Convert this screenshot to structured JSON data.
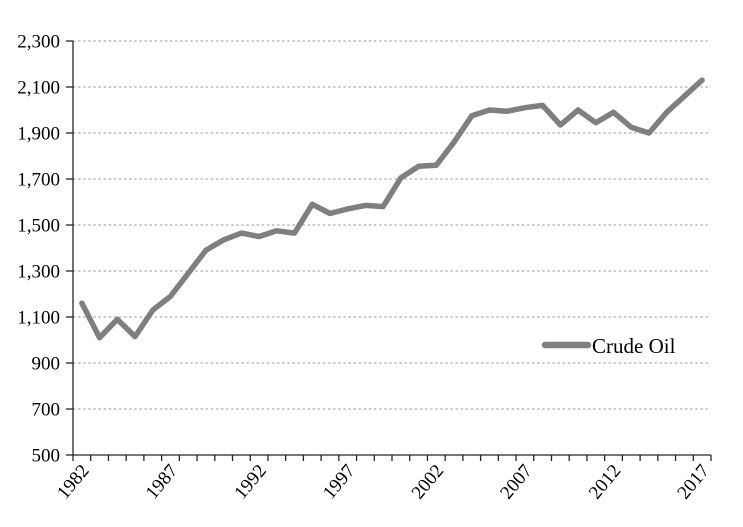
{
  "chart_data": {
    "type": "line",
    "title": "",
    "xlabel": "",
    "ylabel": "",
    "x": [
      1982,
      1983,
      1984,
      1985,
      1986,
      1987,
      1988,
      1989,
      1990,
      1991,
      1992,
      1993,
      1994,
      1995,
      1996,
      1997,
      1998,
      1999,
      2000,
      2001,
      2002,
      2003,
      2004,
      2005,
      2006,
      2007,
      2008,
      2009,
      2010,
      2011,
      2012,
      2013,
      2014,
      2015,
      2016,
      2017
    ],
    "series": [
      {
        "name": "Crude Oil",
        "color": "#7f7f7f",
        "values": [
          1160,
          1010,
          1090,
          1015,
          1130,
          1190,
          1290,
          1390,
          1435,
          1465,
          1450,
          1475,
          1465,
          1590,
          1550,
          1570,
          1585,
          1580,
          1705,
          1755,
          1760,
          1860,
          1975,
          2000,
          1995,
          2010,
          2020,
          1935,
          2000,
          1945,
          1990,
          1925,
          1900,
          1990,
          2060,
          2130
        ]
      }
    ],
    "ylim": [
      500,
      2300
    ],
    "y_ticks": [
      2300,
      2100,
      1900,
      1700,
      1500,
      1300,
      1100,
      900,
      700,
      500
    ],
    "y_tick_labels": [
      "2,300",
      "2,100",
      "1,900",
      "1,700",
      "1,500",
      "1,300",
      "1,100",
      "900",
      "700",
      "500"
    ],
    "x_tick_labels": [
      "1982",
      "1987",
      "1992",
      "1997",
      "2002",
      "2007",
      "2012",
      "2017"
    ],
    "grid": "horizontal-dashed",
    "legend_position": "inside-right",
    "gridline_color": "#9a9a9a",
    "axis_color": "#262626",
    "background": "#ffffff"
  }
}
